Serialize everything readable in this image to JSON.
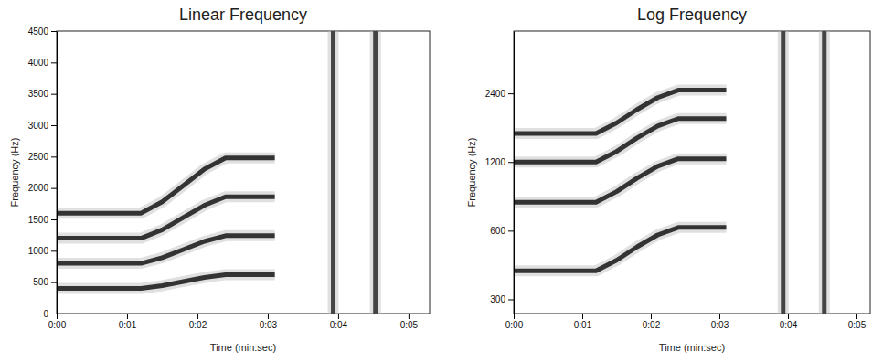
{
  "chart_data": [
    {
      "type": "line",
      "title": "Linear Frequency",
      "xlabel": "Time (min:sec)",
      "ylabel": "Frequency (Hz)",
      "xlim": [
        0,
        5.3
      ],
      "ylim": [
        0,
        4500
      ],
      "xticks": [
        {
          "value": 0,
          "label": "0:00"
        },
        {
          "value": 1,
          "label": "0:01"
        },
        {
          "value": 2,
          "label": "0:02"
        },
        {
          "value": 3,
          "label": "0:03"
        },
        {
          "value": 4,
          "label": "0:04"
        },
        {
          "value": 5,
          "label": "0:05"
        }
      ],
      "yticks": [
        0,
        500,
        1000,
        1500,
        2000,
        2500,
        3000,
        3500,
        4000,
        4500
      ],
      "series": [
        {
          "color": "#333333",
          "x": [
            0,
            1.2,
            1.5,
            1.8,
            2.1,
            2.4,
            3.1
          ],
          "values": [
            400,
            400,
            445,
            510,
            575,
            620,
            620
          ]
        },
        {
          "color": "#333333",
          "x": [
            0,
            1.2,
            1.5,
            1.8,
            2.1,
            2.4,
            3.1
          ],
          "values": [
            800,
            800,
            890,
            1020,
            1150,
            1240,
            1240
          ]
        },
        {
          "color": "#333333",
          "x": [
            0,
            1.2,
            1.5,
            1.8,
            2.1,
            2.4,
            3.1
          ],
          "values": [
            1200,
            1200,
            1335,
            1530,
            1725,
            1860,
            1860
          ]
        },
        {
          "color": "#333333",
          "x": [
            0,
            1.2,
            1.5,
            1.8,
            2.1,
            2.4,
            3.1
          ],
          "values": [
            1600,
            1600,
            1780,
            2040,
            2300,
            2480,
            2480
          ]
        },
        {
          "color": "#444444",
          "x": [
            3.93,
            3.93
          ],
          "values": [
            0,
            4500
          ]
        },
        {
          "color": "#444444",
          "x": [
            4.53,
            4.53
          ],
          "values": [
            0,
            4500
          ]
        }
      ]
    },
    {
      "type": "line",
      "title": "Log Frequency",
      "xlabel": "Time (min:sec)",
      "ylabel": "Frequency (Hz)",
      "log": "y",
      "xlim": [
        0,
        5.2
      ],
      "ylim": [
        260,
        4500
      ],
      "xticks": [
        {
          "value": 0,
          "label": "0:00"
        },
        {
          "value": 1,
          "label": "0:01"
        },
        {
          "value": 2,
          "label": "0:02"
        },
        {
          "value": 3,
          "label": "0:03"
        },
        {
          "value": 4,
          "label": "0:04"
        },
        {
          "value": 5,
          "label": "0:05"
        }
      ],
      "yticks": [
        300,
        600,
        1200,
        2400
      ],
      "series": [
        {
          "color": "#333333",
          "x": [
            0,
            1.2,
            1.5,
            1.8,
            2.1,
            2.4,
            3.1
          ],
          "values": [
            400,
            400,
            445,
            510,
            575,
            620,
            620
          ]
        },
        {
          "color": "#333333",
          "x": [
            0,
            1.2,
            1.5,
            1.8,
            2.1,
            2.4,
            3.1
          ],
          "values": [
            800,
            800,
            890,
            1020,
            1150,
            1240,
            1240
          ]
        },
        {
          "color": "#333333",
          "x": [
            0,
            1.2,
            1.5,
            1.8,
            2.1,
            2.4,
            3.1
          ],
          "values": [
            1200,
            1200,
            1335,
            1530,
            1725,
            1860,
            1860
          ]
        },
        {
          "color": "#333333",
          "x": [
            0,
            1.2,
            1.5,
            1.8,
            2.1,
            2.4,
            3.1
          ],
          "values": [
            1600,
            1600,
            1780,
            2040,
            2300,
            2480,
            2480
          ]
        },
        {
          "color": "#444444",
          "x": [
            3.93,
            3.93
          ],
          "values": [
            260,
            4500
          ]
        },
        {
          "color": "#444444",
          "x": [
            4.53,
            4.53
          ],
          "values": [
            260,
            4500
          ]
        }
      ]
    }
  ]
}
